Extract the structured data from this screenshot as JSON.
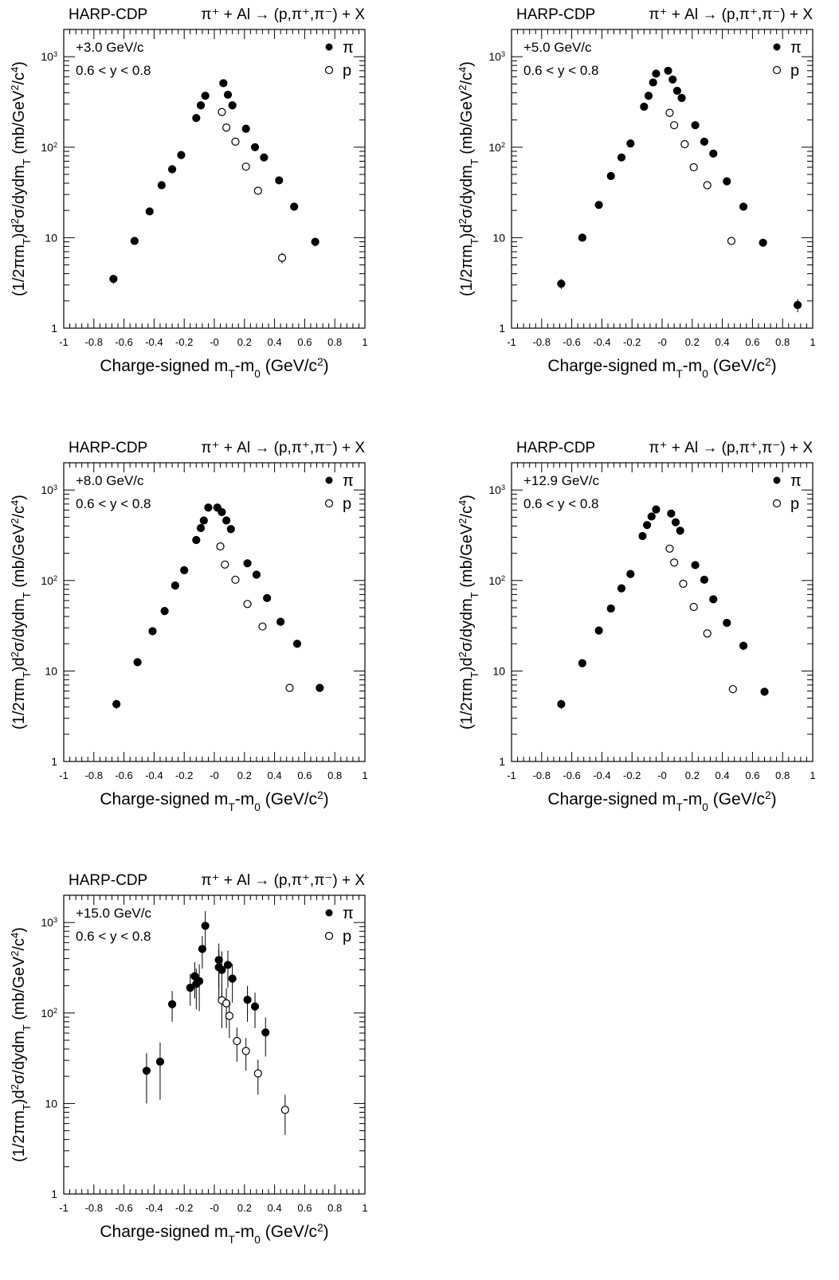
{
  "chart_data": [
    {
      "type": "scatter",
      "header_left": "HARP-CDP",
      "header_right": "π⁺ + Al → (p,π⁺,π⁻) + X",
      "momentum_label": "+3.0 GeV/c",
      "rapidity_label": "0.6 < y < 0.8",
      "xlabel": "Charge-signed m_T-m_0 (GeV/c^2)",
      "ylabel": "(1/2πm_T)d²σ/dydm_T (mb/GeV²/c⁴)",
      "xlim": [
        -1,
        1
      ],
      "ylim": [
        1,
        2000
      ],
      "yscale": "log",
      "xticks": [
        "-1",
        "-0.8",
        "-0.6",
        "-0.4",
        "-0.2",
        "-0",
        "0.2",
        "0.4",
        "0.6",
        "0.8",
        "1"
      ],
      "yticks": [
        "1",
        "10",
        "10²",
        "10³"
      ],
      "legend_position": "top-right",
      "series": [
        {
          "name": "π",
          "marker": "filled-circle",
          "points": [
            {
              "x": -0.67,
              "y": 3.5,
              "err": 0.4
            },
            {
              "x": -0.53,
              "y": 9.2,
              "err": 0.8
            },
            {
              "x": -0.43,
              "y": 19.5,
              "err": 1.5
            },
            {
              "x": -0.35,
              "y": 38,
              "err": 2.5
            },
            {
              "x": -0.28,
              "y": 57,
              "err": 3.5
            },
            {
              "x": -0.22,
              "y": 82,
              "err": 4.5
            },
            {
              "x": -0.12,
              "y": 210,
              "err": 10
            },
            {
              "x": -0.09,
              "y": 290,
              "err": 12
            },
            {
              "x": -0.06,
              "y": 370,
              "err": 15
            },
            {
              "x": 0.06,
              "y": 510,
              "err": 20
            },
            {
              "x": 0.09,
              "y": 380,
              "err": 15
            },
            {
              "x": 0.12,
              "y": 290,
              "err": 12
            },
            {
              "x": 0.21,
              "y": 160,
              "err": 8
            },
            {
              "x": 0.27,
              "y": 100,
              "err": 6
            },
            {
              "x": 0.33,
              "y": 77,
              "err": 5
            },
            {
              "x": 0.43,
              "y": 43,
              "err": 3
            },
            {
              "x": 0.53,
              "y": 22,
              "err": 2
            },
            {
              "x": 0.67,
              "y": 9,
              "err": 1
            }
          ]
        },
        {
          "name": "p",
          "marker": "open-circle",
          "points": [
            {
              "x": 0.05,
              "y": 245,
              "err": 12
            },
            {
              "x": 0.08,
              "y": 165,
              "err": 8
            },
            {
              "x": 0.14,
              "y": 115,
              "err": 6
            },
            {
              "x": 0.21,
              "y": 61,
              "err": 4
            },
            {
              "x": 0.29,
              "y": 33,
              "err": 2.5
            },
            {
              "x": 0.45,
              "y": 6,
              "err": 0.8
            }
          ]
        }
      ]
    },
    {
      "type": "scatter",
      "header_left": "HARP-CDP",
      "header_right": "π⁺ + Al → (p,π⁺,π⁻) + X",
      "momentum_label": "+5.0 GeV/c",
      "rapidity_label": "0.6 < y < 0.8",
      "xlabel": "Charge-signed m_T-m_0 (GeV/c^2)",
      "ylabel": "(1/2πm_T)d²σ/dydm_T (mb/GeV²/c⁴)",
      "xlim": [
        -1,
        1
      ],
      "ylim": [
        1,
        2000
      ],
      "yscale": "log",
      "xticks": [
        "-1",
        "-0.8",
        "-0.6",
        "-0.4",
        "-0.2",
        "-0",
        "0.2",
        "0.4",
        "0.6",
        "0.8",
        "1"
      ],
      "yticks": [
        "1",
        "10",
        "10²",
        "10³"
      ],
      "legend_position": "top-right",
      "series": [
        {
          "name": "π",
          "marker": "filled-circle",
          "points": [
            {
              "x": -0.67,
              "y": 3.1,
              "err": 0.4
            },
            {
              "x": -0.53,
              "y": 10,
              "err": 0.8
            },
            {
              "x": -0.42,
              "y": 23,
              "err": 1.5
            },
            {
              "x": -0.34,
              "y": 48,
              "err": 3
            },
            {
              "x": -0.27,
              "y": 77,
              "err": 4
            },
            {
              "x": -0.21,
              "y": 110,
              "err": 6
            },
            {
              "x": -0.12,
              "y": 280,
              "err": 12
            },
            {
              "x": -0.09,
              "y": 370,
              "err": 15
            },
            {
              "x": -0.06,
              "y": 520,
              "err": 20
            },
            {
              "x": -0.04,
              "y": 650,
              "err": 25
            },
            {
              "x": 0.04,
              "y": 700,
              "err": 25
            },
            {
              "x": 0.07,
              "y": 560,
              "err": 20
            },
            {
              "x": 0.1,
              "y": 420,
              "err": 16
            },
            {
              "x": 0.13,
              "y": 350,
              "err": 14
            },
            {
              "x": 0.22,
              "y": 175,
              "err": 8
            },
            {
              "x": 0.28,
              "y": 115,
              "err": 6
            },
            {
              "x": 0.34,
              "y": 85,
              "err": 5
            },
            {
              "x": 0.43,
              "y": 42,
              "err": 3
            },
            {
              "x": 0.54,
              "y": 22,
              "err": 2
            },
            {
              "x": 0.67,
              "y": 8.8,
              "err": 0.8
            },
            {
              "x": 0.9,
              "y": 1.8,
              "err": 0.3
            }
          ]
        },
        {
          "name": "p",
          "marker": "open-circle",
          "points": [
            {
              "x": 0.05,
              "y": 240,
              "err": 12
            },
            {
              "x": 0.08,
              "y": 175,
              "err": 8
            },
            {
              "x": 0.15,
              "y": 108,
              "err": 6
            },
            {
              "x": 0.21,
              "y": 60,
              "err": 4
            },
            {
              "x": 0.3,
              "y": 38,
              "err": 2.5
            },
            {
              "x": 0.46,
              "y": 9.2,
              "err": 0.8
            }
          ]
        }
      ]
    },
    {
      "type": "scatter",
      "header_left": "HARP-CDP",
      "header_right": "π⁺ + Al → (p,π⁺,π⁻) + X",
      "momentum_label": "+8.0 GeV/c",
      "rapidity_label": "0.6 < y < 0.8",
      "xlabel": "Charge-signed m_T-m_0 (GeV/c^2)",
      "ylabel": "(1/2πm_T)d²σ/dydm_T (mb/GeV²/c⁴)",
      "xlim": [
        -1,
        1
      ],
      "ylim": [
        1,
        2000
      ],
      "yscale": "log",
      "xticks": [
        "-1",
        "-0.8",
        "-0.6",
        "-0.4",
        "-0.2",
        "-0",
        "0.2",
        "0.4",
        "0.6",
        "0.8",
        "1"
      ],
      "yticks": [
        "1",
        "10",
        "10²",
        "10³"
      ],
      "legend_position": "top-right",
      "series": [
        {
          "name": "π",
          "marker": "filled-circle",
          "points": [
            {
              "x": -0.65,
              "y": 4.3,
              "err": 0.5
            },
            {
              "x": -0.51,
              "y": 12.5,
              "err": 1
            },
            {
              "x": -0.41,
              "y": 27.5,
              "err": 2
            },
            {
              "x": -0.33,
              "y": 46,
              "err": 3
            },
            {
              "x": -0.26,
              "y": 88,
              "err": 5
            },
            {
              "x": -0.2,
              "y": 130,
              "err": 7
            },
            {
              "x": -0.12,
              "y": 280,
              "err": 12
            },
            {
              "x": -0.09,
              "y": 380,
              "err": 15
            },
            {
              "x": -0.07,
              "y": 460,
              "err": 18
            },
            {
              "x": -0.04,
              "y": 640,
              "err": 25
            },
            {
              "x": 0.02,
              "y": 640,
              "err": 25
            },
            {
              "x": 0.05,
              "y": 570,
              "err": 22
            },
            {
              "x": 0.08,
              "y": 460,
              "err": 18
            },
            {
              "x": 0.11,
              "y": 370,
              "err": 15
            },
            {
              "x": 0.22,
              "y": 155,
              "err": 8
            },
            {
              "x": 0.28,
              "y": 116,
              "err": 6
            },
            {
              "x": 0.35,
              "y": 64,
              "err": 4
            },
            {
              "x": 0.44,
              "y": 35,
              "err": 3
            },
            {
              "x": 0.55,
              "y": 20,
              "err": 2
            },
            {
              "x": 0.7,
              "y": 6.5,
              "err": 0.6
            }
          ]
        },
        {
          "name": "p",
          "marker": "open-circle",
          "points": [
            {
              "x": 0.04,
              "y": 238,
              "err": 12
            },
            {
              "x": 0.07,
              "y": 150,
              "err": 8
            },
            {
              "x": 0.14,
              "y": 102,
              "err": 6
            },
            {
              "x": 0.22,
              "y": 55,
              "err": 4
            },
            {
              "x": 0.32,
              "y": 31,
              "err": 2.5
            },
            {
              "x": 0.5,
              "y": 6.5,
              "err": 0.6
            }
          ]
        }
      ]
    },
    {
      "type": "scatter",
      "header_left": "HARP-CDP",
      "header_right": "π⁺ + Al → (p,π⁺,π⁻) + X",
      "momentum_label": "+12.9 GeV/c",
      "rapidity_label": "0.6 < y < 0.8",
      "xlabel": "Charge-signed m_T-m_0 (GeV/c^2)",
      "ylabel": "(1/2πm_T)d²σ/dydm_T (mb/GeV²/c⁴)",
      "xlim": [
        -1,
        1
      ],
      "ylim": [
        1,
        2000
      ],
      "yscale": "log",
      "xticks": [
        "-1",
        "-0.8",
        "-0.6",
        "-0.4",
        "-0.2",
        "-0",
        "0.2",
        "0.4",
        "0.6",
        "0.8",
        "1"
      ],
      "yticks": [
        "1",
        "10",
        "10²",
        "10³"
      ],
      "legend_position": "top-right",
      "series": [
        {
          "name": "π",
          "marker": "filled-circle",
          "points": [
            {
              "x": -0.67,
              "y": 4.3,
              "err": 0.5
            },
            {
              "x": -0.53,
              "y": 12.2,
              "err": 1
            },
            {
              "x": -0.42,
              "y": 28,
              "err": 2
            },
            {
              "x": -0.34,
              "y": 49,
              "err": 3
            },
            {
              "x": -0.27,
              "y": 82,
              "err": 5
            },
            {
              "x": -0.21,
              "y": 118,
              "err": 6
            },
            {
              "x": -0.13,
              "y": 310,
              "err": 14
            },
            {
              "x": -0.1,
              "y": 410,
              "err": 16
            },
            {
              "x": -0.07,
              "y": 510,
              "err": 20
            },
            {
              "x": -0.04,
              "y": 610,
              "err": 24
            },
            {
              "x": 0.06,
              "y": 550,
              "err": 22
            },
            {
              "x": 0.09,
              "y": 440,
              "err": 18
            },
            {
              "x": 0.12,
              "y": 355,
              "err": 15
            },
            {
              "x": 0.22,
              "y": 148,
              "err": 8
            },
            {
              "x": 0.28,
              "y": 102,
              "err": 6
            },
            {
              "x": 0.34,
              "y": 62,
              "err": 4
            },
            {
              "x": 0.43,
              "y": 34,
              "err": 3
            },
            {
              "x": 0.54,
              "y": 19,
              "err": 2
            },
            {
              "x": 0.68,
              "y": 5.9,
              "err": 0.6
            }
          ]
        },
        {
          "name": "p",
          "marker": "open-circle",
          "points": [
            {
              "x": 0.05,
              "y": 225,
              "err": 12
            },
            {
              "x": 0.08,
              "y": 158,
              "err": 8
            },
            {
              "x": 0.14,
              "y": 92,
              "err": 5
            },
            {
              "x": 0.21,
              "y": 51,
              "err": 4
            },
            {
              "x": 0.3,
              "y": 26,
              "err": 2
            },
            {
              "x": 0.47,
              "y": 6.3,
              "err": 0.6
            }
          ]
        }
      ]
    },
    {
      "type": "scatter",
      "header_left": "HARP-CDP",
      "header_right": "π⁺ + Al → (p,π⁺,π⁻) + X",
      "momentum_label": "+15.0 GeV/c",
      "rapidity_label": "0.6 < y < 0.8",
      "xlabel": "Charge-signed m_T-m_0 (GeV/c^2)",
      "ylabel": "(1/2πm_T)d²σ/dydm_T (mb/GeV²/c⁴)",
      "xlim": [
        -1,
        1
      ],
      "ylim": [
        1,
        2000
      ],
      "yscale": "log",
      "xticks": [
        "-1",
        "-0.8",
        "-0.6",
        "-0.4",
        "-0.2",
        "-0",
        "0.2",
        "0.4",
        "0.6",
        "0.8",
        "1"
      ],
      "yticks": [
        "1",
        "10",
        "10²",
        "10³"
      ],
      "legend_position": "top-right",
      "series": [
        {
          "name": "π",
          "marker": "filled-circle",
          "points": [
            {
              "x": -0.45,
              "y": 23,
              "errlo": 13,
              "errhi": 13
            },
            {
              "x": -0.36,
              "y": 29,
              "errlo": 18,
              "errhi": 18
            },
            {
              "x": -0.28,
              "y": 125,
              "errlo": 45,
              "errhi": 50
            },
            {
              "x": -0.16,
              "y": 190,
              "errlo": 70,
              "errhi": 80
            },
            {
              "x": -0.13,
              "y": 255,
              "errlo": 110,
              "errhi": 110
            },
            {
              "x": -0.12,
              "y": 210,
              "errlo": 100,
              "errhi": 100
            },
            {
              "x": -0.1,
              "y": 225,
              "errlo": 120,
              "errhi": 120
            },
            {
              "x": -0.08,
              "y": 510,
              "errlo": 200,
              "errhi": 200
            },
            {
              "x": -0.06,
              "y": 920,
              "errlo": 400,
              "errhi": 420
            },
            {
              "x": 0.03,
              "y": 385,
              "errlo": 200,
              "errhi": 200
            },
            {
              "x": 0.03,
              "y": 320,
              "errlo": 180,
              "errhi": 180
            },
            {
              "x": 0.05,
              "y": 300,
              "errlo": 180,
              "errhi": 180
            },
            {
              "x": 0.09,
              "y": 340,
              "errlo": 150,
              "errhi": 150
            },
            {
              "x": 0.12,
              "y": 240,
              "errlo": 110,
              "errhi": 110
            },
            {
              "x": 0.22,
              "y": 140,
              "errlo": 60,
              "errhi": 60
            },
            {
              "x": 0.27,
              "y": 118,
              "errlo": 50,
              "errhi": 50
            },
            {
              "x": 0.34,
              "y": 61,
              "errlo": 28,
              "errhi": 28
            }
          ]
        },
        {
          "name": "p",
          "marker": "open-circle",
          "points": [
            {
              "x": 0.05,
              "y": 138,
              "errlo": 70,
              "errhi": 70
            },
            {
              "x": 0.08,
              "y": 128,
              "errlo": 60,
              "errhi": 60
            },
            {
              "x": 0.1,
              "y": 93,
              "errlo": 40,
              "errhi": 40
            },
            {
              "x": 0.15,
              "y": 49,
              "errlo": 20,
              "errhi": 20
            },
            {
              "x": 0.21,
              "y": 38,
              "errlo": 15,
              "errhi": 15
            },
            {
              "x": 0.29,
              "y": 21.5,
              "errlo": 9,
              "errhi": 9
            },
            {
              "x": 0.47,
              "y": 8.5,
              "errlo": 4,
              "errhi": 4
            }
          ]
        }
      ]
    }
  ]
}
